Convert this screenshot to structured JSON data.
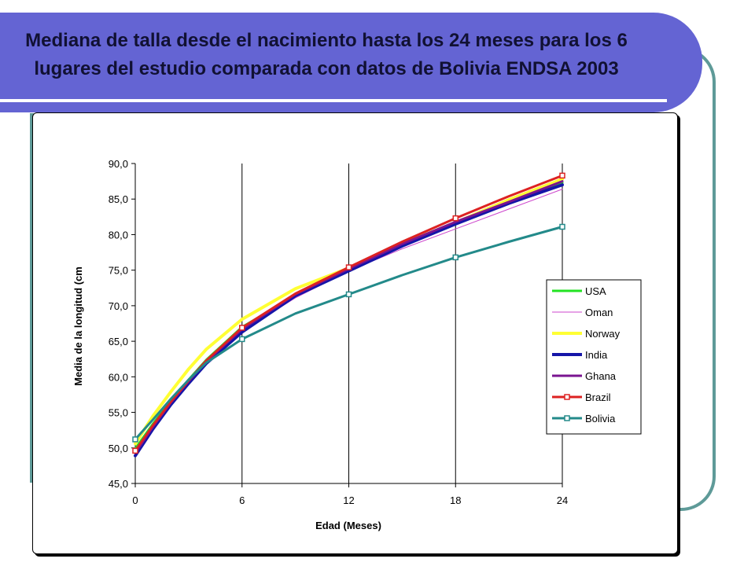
{
  "slide": {
    "title": "Mediana de talla desde el nacimiento hasta los 24 meses para los 6 lugares del estudio comparada con datos de  Bolivia ENDSA 2003"
  },
  "chart_data": {
    "type": "line",
    "xlabel": "Edad (Meses)",
    "ylabel": "Media de la longitud (cm",
    "xlim": [
      0,
      24
    ],
    "ylim": [
      45,
      90
    ],
    "x_ticks": [
      0,
      6,
      12,
      18,
      24
    ],
    "y_ticks": [
      "45,0",
      "50,0",
      "55,0",
      "60,0",
      "65,0",
      "70,0",
      "75,0",
      "80,0",
      "85,0",
      "90,0"
    ],
    "grid": "vertical",
    "legend_position": "right",
    "x": [
      0,
      1,
      2,
      3,
      4,
      6,
      9,
      12,
      15,
      18,
      21,
      24
    ],
    "series": [
      {
        "name": "USA",
        "color": "#22e322",
        "width": 3,
        "marker": "none",
        "values": [
          49.9,
          53.4,
          56.6,
          59.6,
          62.4,
          67.0,
          71.4,
          75.1,
          78.6,
          81.6,
          84.5,
          87.3
        ]
      },
      {
        "name": "Oman",
        "color": "#cc44cc",
        "width": 1,
        "marker": "none",
        "values": [
          49.4,
          52.9,
          56.1,
          59.1,
          62.0,
          66.4,
          71.1,
          74.9,
          78.0,
          80.8,
          83.6,
          86.4
        ]
      },
      {
        "name": "Norway",
        "color": "#ffff33",
        "width": 4,
        "marker": "none",
        "values": [
          50.6,
          54.5,
          57.9,
          61.1,
          63.9,
          68.1,
          72.4,
          75.3,
          78.7,
          81.7,
          84.9,
          87.8
        ]
      },
      {
        "name": "India",
        "color": "#1515a8",
        "width": 4,
        "marker": "none",
        "values": [
          48.9,
          52.7,
          56.1,
          59.1,
          61.9,
          66.3,
          71.4,
          74.9,
          78.4,
          81.5,
          84.4,
          87.0
        ]
      },
      {
        "name": "Ghana",
        "color": "#7a1490",
        "width": 3,
        "marker": "none",
        "values": [
          49.3,
          53.0,
          56.4,
          59.4,
          62.2,
          66.7,
          71.6,
          75.2,
          78.7,
          81.8,
          84.6,
          87.5
        ]
      },
      {
        "name": "Brazil",
        "color": "#dd2222",
        "width": 3,
        "marker": "square",
        "values": [
          49.6,
          53.2,
          56.5,
          59.5,
          62.3,
          66.9,
          71.7,
          75.4,
          79.0,
          82.3,
          85.4,
          88.3
        ]
      },
      {
        "name": "Bolivia",
        "color": "#238a8a",
        "width": 3,
        "marker": "square",
        "values": [
          51.2,
          54.0,
          56.9,
          59.6,
          62.0,
          65.3,
          68.9,
          71.6,
          74.3,
          76.8,
          79.0,
          81.1
        ]
      }
    ]
  }
}
